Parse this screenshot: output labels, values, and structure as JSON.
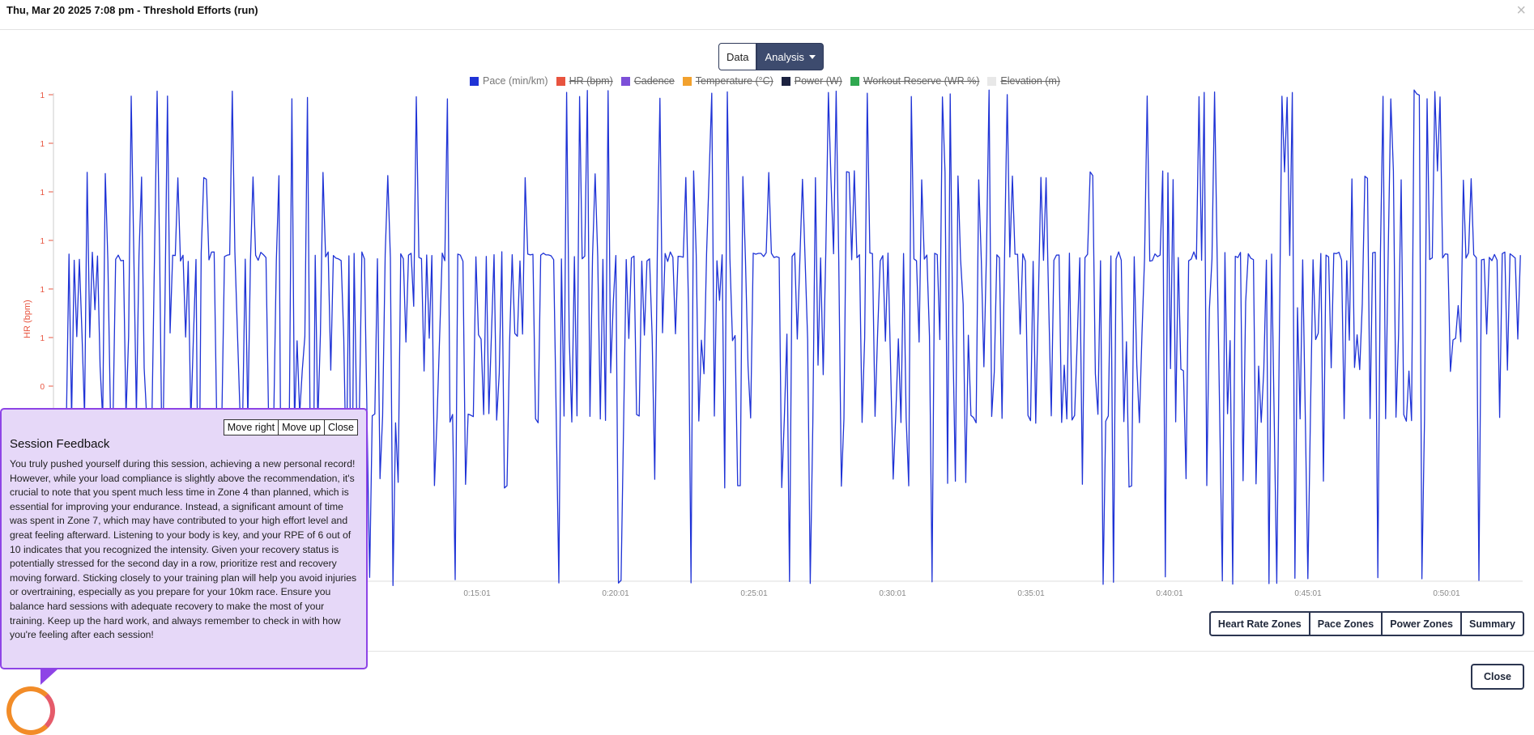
{
  "modal": {
    "title": "Thu, Mar 20 2025 7:08 pm - Threshold Efforts (run)",
    "close_symbol": "×"
  },
  "view_toggle": {
    "data_label": "Data",
    "analysis_label": "Analysis"
  },
  "legend": [
    {
      "label": "Pace (min/km)",
      "color": "#1f33d6",
      "enabled": true
    },
    {
      "label": "HR (bpm)",
      "color": "#e8543f",
      "enabled": false
    },
    {
      "label": "Cadence",
      "color": "#7c4fd8",
      "enabled": false
    },
    {
      "label": "Temperature (°C)",
      "color": "#f2a12e",
      "enabled": false
    },
    {
      "label": "Power (W)",
      "color": "#1c2240",
      "enabled": false
    },
    {
      "label": "Workout Reserve (WR %)",
      "color": "#2fa84f",
      "enabled": false
    },
    {
      "label": "Elevation (m)",
      "color": "#e8e8e8",
      "enabled": false
    }
  ],
  "chart_data": {
    "type": "line",
    "ylabel": "HR (bpm)",
    "y_tick_labels": [
      "1",
      "1",
      "1",
      "1",
      "1",
      "1",
      "0"
    ],
    "x_tick_labels": [
      "0:15:01",
      "0:20:01",
      "0:25:01",
      "0:30:01",
      "0:35:01",
      "0:40:01",
      "0:45:01",
      "0:50:01"
    ],
    "series": [
      {
        "name": "Pace (min/km)",
        "color": "#1f33d6"
      }
    ]
  },
  "zone_buttons": [
    "Heart Rate Zones",
    "Pace Zones",
    "Power Zones",
    "Summary"
  ],
  "footer": {
    "close_label": "Close"
  },
  "feedback": {
    "title": "Session Feedback",
    "move_right_label": "Move right",
    "move_up_label": "Move up",
    "close_label": "Close",
    "body": "You truly pushed yourself during this session, achieving a new personal record! However, while your load compliance is slightly above the recommendation, it's crucial to note that you spent much less time in Zone 4 than planned, which is essential for improving your endurance. Instead, a significant amount of time was spent in Zone 7, which may have contributed to your high effort level and great feeling afterward. Listening to your body is key, and your RPE of 6 out of 10 indicates that you recognized the intensity. Given your recovery status is potentially stressed for the second day in a row, prioritize rest and recovery moving forward. Sticking closely to your training plan will help you avoid injuries or overtraining, especially as you prepare for your 10km race. Ensure you balance hard sessions with adequate recovery to make the most of your training. Keep up the hard work, and always remember to check in with how you're feeling after each session!"
  }
}
